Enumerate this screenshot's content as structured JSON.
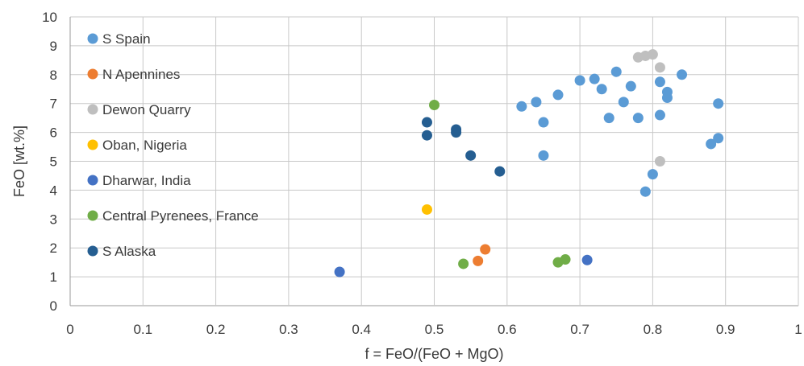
{
  "chart_data": {
    "type": "scatter",
    "title": "",
    "xlabel": "f = FeO/(FeO + MgO)",
    "ylabel": "FeO [wt.%]",
    "xlim": [
      0,
      1
    ],
    "ylim": [
      0,
      10
    ],
    "x_ticks": [
      "0",
      "0.1",
      "0.2",
      "0.3",
      "0.4",
      "0.5",
      "0.6",
      "0.7",
      "0.8",
      "0.9",
      "1"
    ],
    "y_ticks": [
      "0",
      "1",
      "2",
      "3",
      "4",
      "5",
      "6",
      "7",
      "8",
      "9",
      "10"
    ],
    "grid": true,
    "legend_position": "inside-left",
    "series": [
      {
        "name": "S Spain",
        "color": "#5b9bd5",
        "points": [
          [
            0.62,
            6.9
          ],
          [
            0.64,
            7.05
          ],
          [
            0.65,
            6.35
          ],
          [
            0.65,
            5.2
          ],
          [
            0.67,
            7.3
          ],
          [
            0.7,
            7.8
          ],
          [
            0.72,
            7.85
          ],
          [
            0.73,
            7.5
          ],
          [
            0.74,
            6.5
          ],
          [
            0.75,
            8.1
          ],
          [
            0.76,
            7.05
          ],
          [
            0.77,
            7.6
          ],
          [
            0.78,
            6.5
          ],
          [
            0.79,
            3.95
          ],
          [
            0.8,
            4.55
          ],
          [
            0.81,
            7.75
          ],
          [
            0.81,
            6.6
          ],
          [
            0.82,
            7.4
          ],
          [
            0.82,
            7.2
          ],
          [
            0.84,
            8.0
          ],
          [
            0.88,
            5.6
          ],
          [
            0.89,
            5.8
          ],
          [
            0.89,
            7.0
          ]
        ]
      },
      {
        "name": "N Apennines",
        "color": "#ed7d31",
        "points": [
          [
            0.56,
            1.55
          ],
          [
            0.57,
            1.95
          ]
        ]
      },
      {
        "name": "Dewon Quarry",
        "color": "#bfbfbf",
        "points": [
          [
            0.78,
            8.6
          ],
          [
            0.79,
            8.65
          ],
          [
            0.8,
            8.7
          ],
          [
            0.81,
            8.25
          ],
          [
            0.81,
            5.0
          ]
        ]
      },
      {
        "name": "Oban, Nigeria",
        "color": "#ffc000",
        "points": [
          [
            0.49,
            3.33
          ]
        ]
      },
      {
        "name": "Dharwar, India",
        "color": "#4472c4",
        "points": [
          [
            0.37,
            1.17
          ],
          [
            0.71,
            1.58
          ]
        ]
      },
      {
        "name": "Central Pyrenees, France",
        "color": "#70ad47",
        "points": [
          [
            0.5,
            6.95
          ],
          [
            0.54,
            1.45
          ],
          [
            0.67,
            1.5
          ],
          [
            0.68,
            1.6
          ]
        ]
      },
      {
        "name": "S Alaska",
        "color": "#255e91",
        "points": [
          [
            0.49,
            6.35
          ],
          [
            0.49,
            5.9
          ],
          [
            0.53,
            6.1
          ],
          [
            0.53,
            6.0
          ],
          [
            0.55,
            5.2
          ],
          [
            0.59,
            4.65
          ]
        ]
      }
    ]
  }
}
